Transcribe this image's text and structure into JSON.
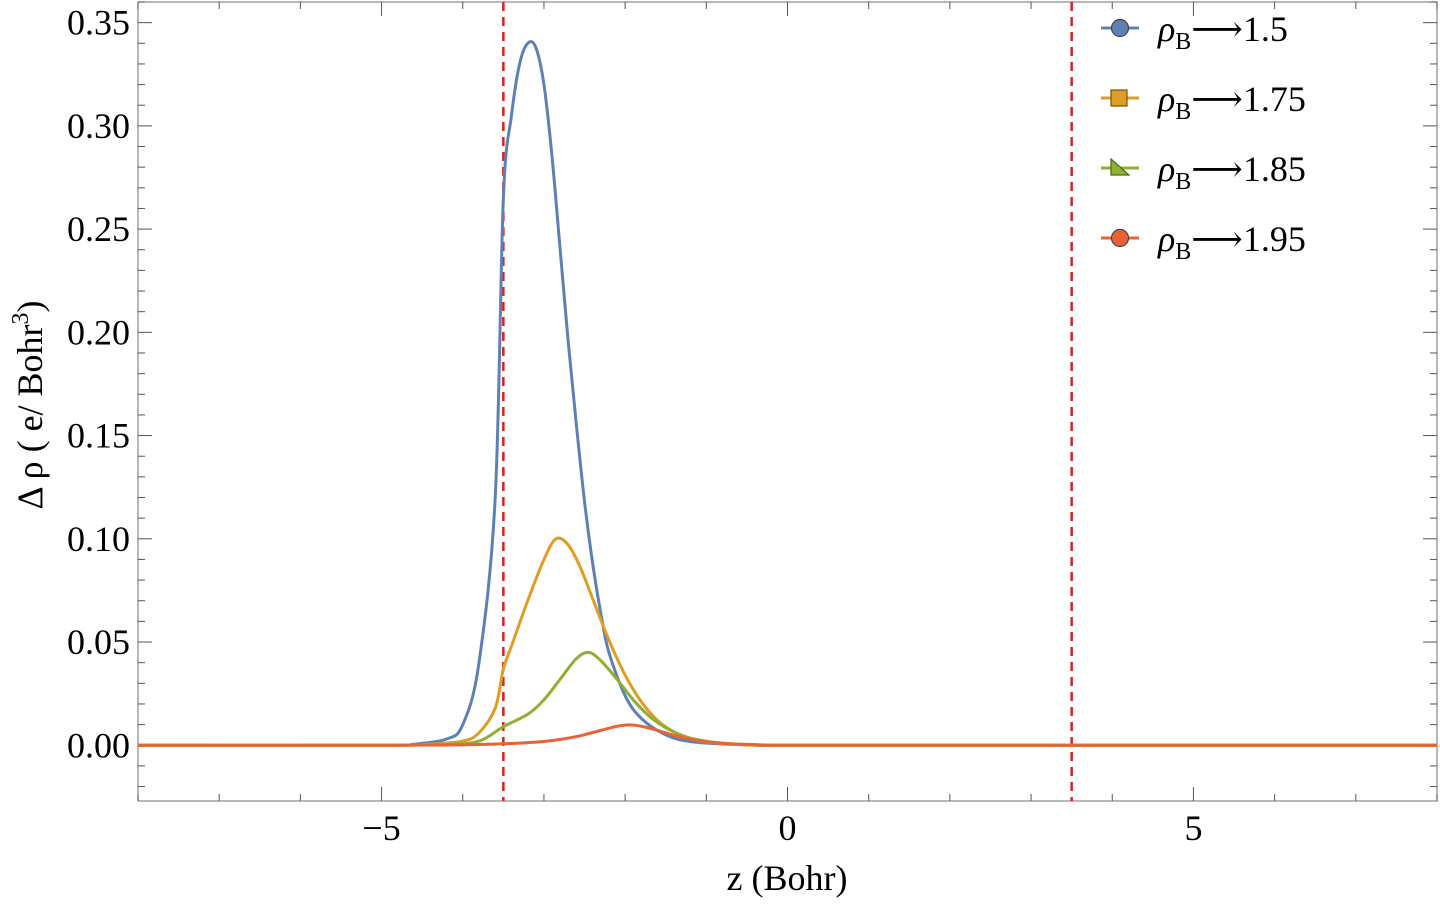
{
  "chart_data": {
    "type": "line",
    "title": "",
    "xlabel": "z (Bohr)",
    "ylabel_prefix": "Δ ρ ( e/ Bohr",
    "ylabel_exp": "3",
    "ylabel_suffix": ")",
    "xlim": [
      -8,
      8
    ],
    "ylim": [
      -0.027,
      0.36
    ],
    "x_ticks": [
      {
        "value": -5,
        "label": "−5"
      },
      {
        "value": 0,
        "label": "0"
      },
      {
        "value": 5,
        "label": "5"
      }
    ],
    "y_ticks": [
      {
        "value": 0.0,
        "label": "0.00"
      },
      {
        "value": 0.05,
        "label": "0.05"
      },
      {
        "value": 0.1,
        "label": "0.10"
      },
      {
        "value": 0.15,
        "label": "0.15"
      },
      {
        "value": 0.2,
        "label": "0.20"
      },
      {
        "value": 0.25,
        "label": "0.25"
      },
      {
        "value": 0.3,
        "label": "0.30"
      },
      {
        "value": 0.35,
        "label": "0.35"
      }
    ],
    "vertical_lines": [
      {
        "x": -3.5,
        "color": "#e01f1f",
        "style": "dashed"
      },
      {
        "x": 3.5,
        "color": "#e01f1f",
        "style": "dashed"
      }
    ],
    "grid": false,
    "legend_position": "top-right",
    "series": [
      {
        "legend_symbol": "ρ",
        "legend_sub": "B",
        "legend_value": "⟶1.5",
        "color": "#5e81b5",
        "marker": "circle",
        "x": [
          -8,
          -5,
          -4.6,
          -4.2,
          -4.0,
          -3.8,
          -3.6,
          -3.5,
          -3.4,
          -3.3,
          -3.2,
          -3.1,
          -3.0,
          -2.9,
          -2.8,
          -2.7,
          -2.6,
          -2.5,
          -2.4,
          -2.3,
          -2.2,
          -2.0,
          -1.8,
          -1.5,
          -1.2,
          -0.8,
          -0.4,
          0,
          4,
          8
        ],
        "y": [
          0.0,
          0.0,
          0.0005,
          0.003,
          0.01,
          0.04,
          0.12,
          0.265,
          0.305,
          0.33,
          0.34,
          0.338,
          0.32,
          0.285,
          0.24,
          0.195,
          0.155,
          0.118,
          0.088,
          0.064,
          0.045,
          0.024,
          0.013,
          0.005,
          0.0018,
          0.0006,
          0.0002,
          0.0,
          0.0,
          0.0
        ]
      },
      {
        "legend_symbol": "ρ",
        "legend_sub": "B",
        "legend_value": "⟶1.75",
        "color": "#e19c24",
        "marker": "square",
        "x": [
          -8,
          -5,
          -4.4,
          -4.0,
          -3.8,
          -3.6,
          -3.5,
          -3.4,
          -3.2,
          -3.0,
          -2.85,
          -2.7,
          -2.55,
          -2.4,
          -2.2,
          -2.0,
          -1.8,
          -1.6,
          -1.4,
          -1.2,
          -1.0,
          -0.6,
          0,
          4,
          8
        ],
        "y": [
          0.0,
          0.0,
          0.0005,
          0.002,
          0.006,
          0.018,
          0.037,
          0.048,
          0.07,
          0.09,
          0.1,
          0.097,
          0.086,
          0.071,
          0.051,
          0.034,
          0.021,
          0.012,
          0.0065,
          0.0033,
          0.0016,
          0.0004,
          0.0,
          0.0,
          0.0
        ]
      },
      {
        "legend_symbol": "ρ",
        "legend_sub": "B",
        "legend_value": "⟶1.85",
        "color": "#8fb032",
        "marker": "triangle",
        "x": [
          -8,
          -5,
          -4.2,
          -3.8,
          -3.5,
          -3.2,
          -3.0,
          -2.8,
          -2.6,
          -2.45,
          -2.3,
          -2.1,
          -1.9,
          -1.7,
          -1.5,
          -1.3,
          -1.1,
          -0.8,
          -0.4,
          0,
          4,
          8
        ],
        "y": [
          0.0,
          0.0,
          0.0005,
          0.002,
          0.009,
          0.015,
          0.022,
          0.032,
          0.042,
          0.045,
          0.041,
          0.032,
          0.022,
          0.014,
          0.0085,
          0.0048,
          0.0026,
          0.001,
          0.0003,
          0.0,
          0.0,
          0.0
        ]
      },
      {
        "legend_symbol": "ρ",
        "legend_sub": "B",
        "legend_value": "⟶1.95",
        "color": "#eb6235",
        "marker": "circle",
        "x": [
          -8,
          -5,
          -4.0,
          -3.5,
          -3.0,
          -2.6,
          -2.3,
          -2.1,
          -1.95,
          -1.8,
          -1.6,
          -1.4,
          -1.2,
          -1.0,
          -0.7,
          -0.3,
          0,
          4,
          8
        ],
        "y": [
          0.0,
          0.0,
          0.0002,
          0.0007,
          0.0018,
          0.0042,
          0.0072,
          0.0092,
          0.0099,
          0.0092,
          0.0072,
          0.0048,
          0.003,
          0.0017,
          0.0007,
          0.0002,
          0.0,
          0.0,
          0.0
        ]
      }
    ]
  }
}
